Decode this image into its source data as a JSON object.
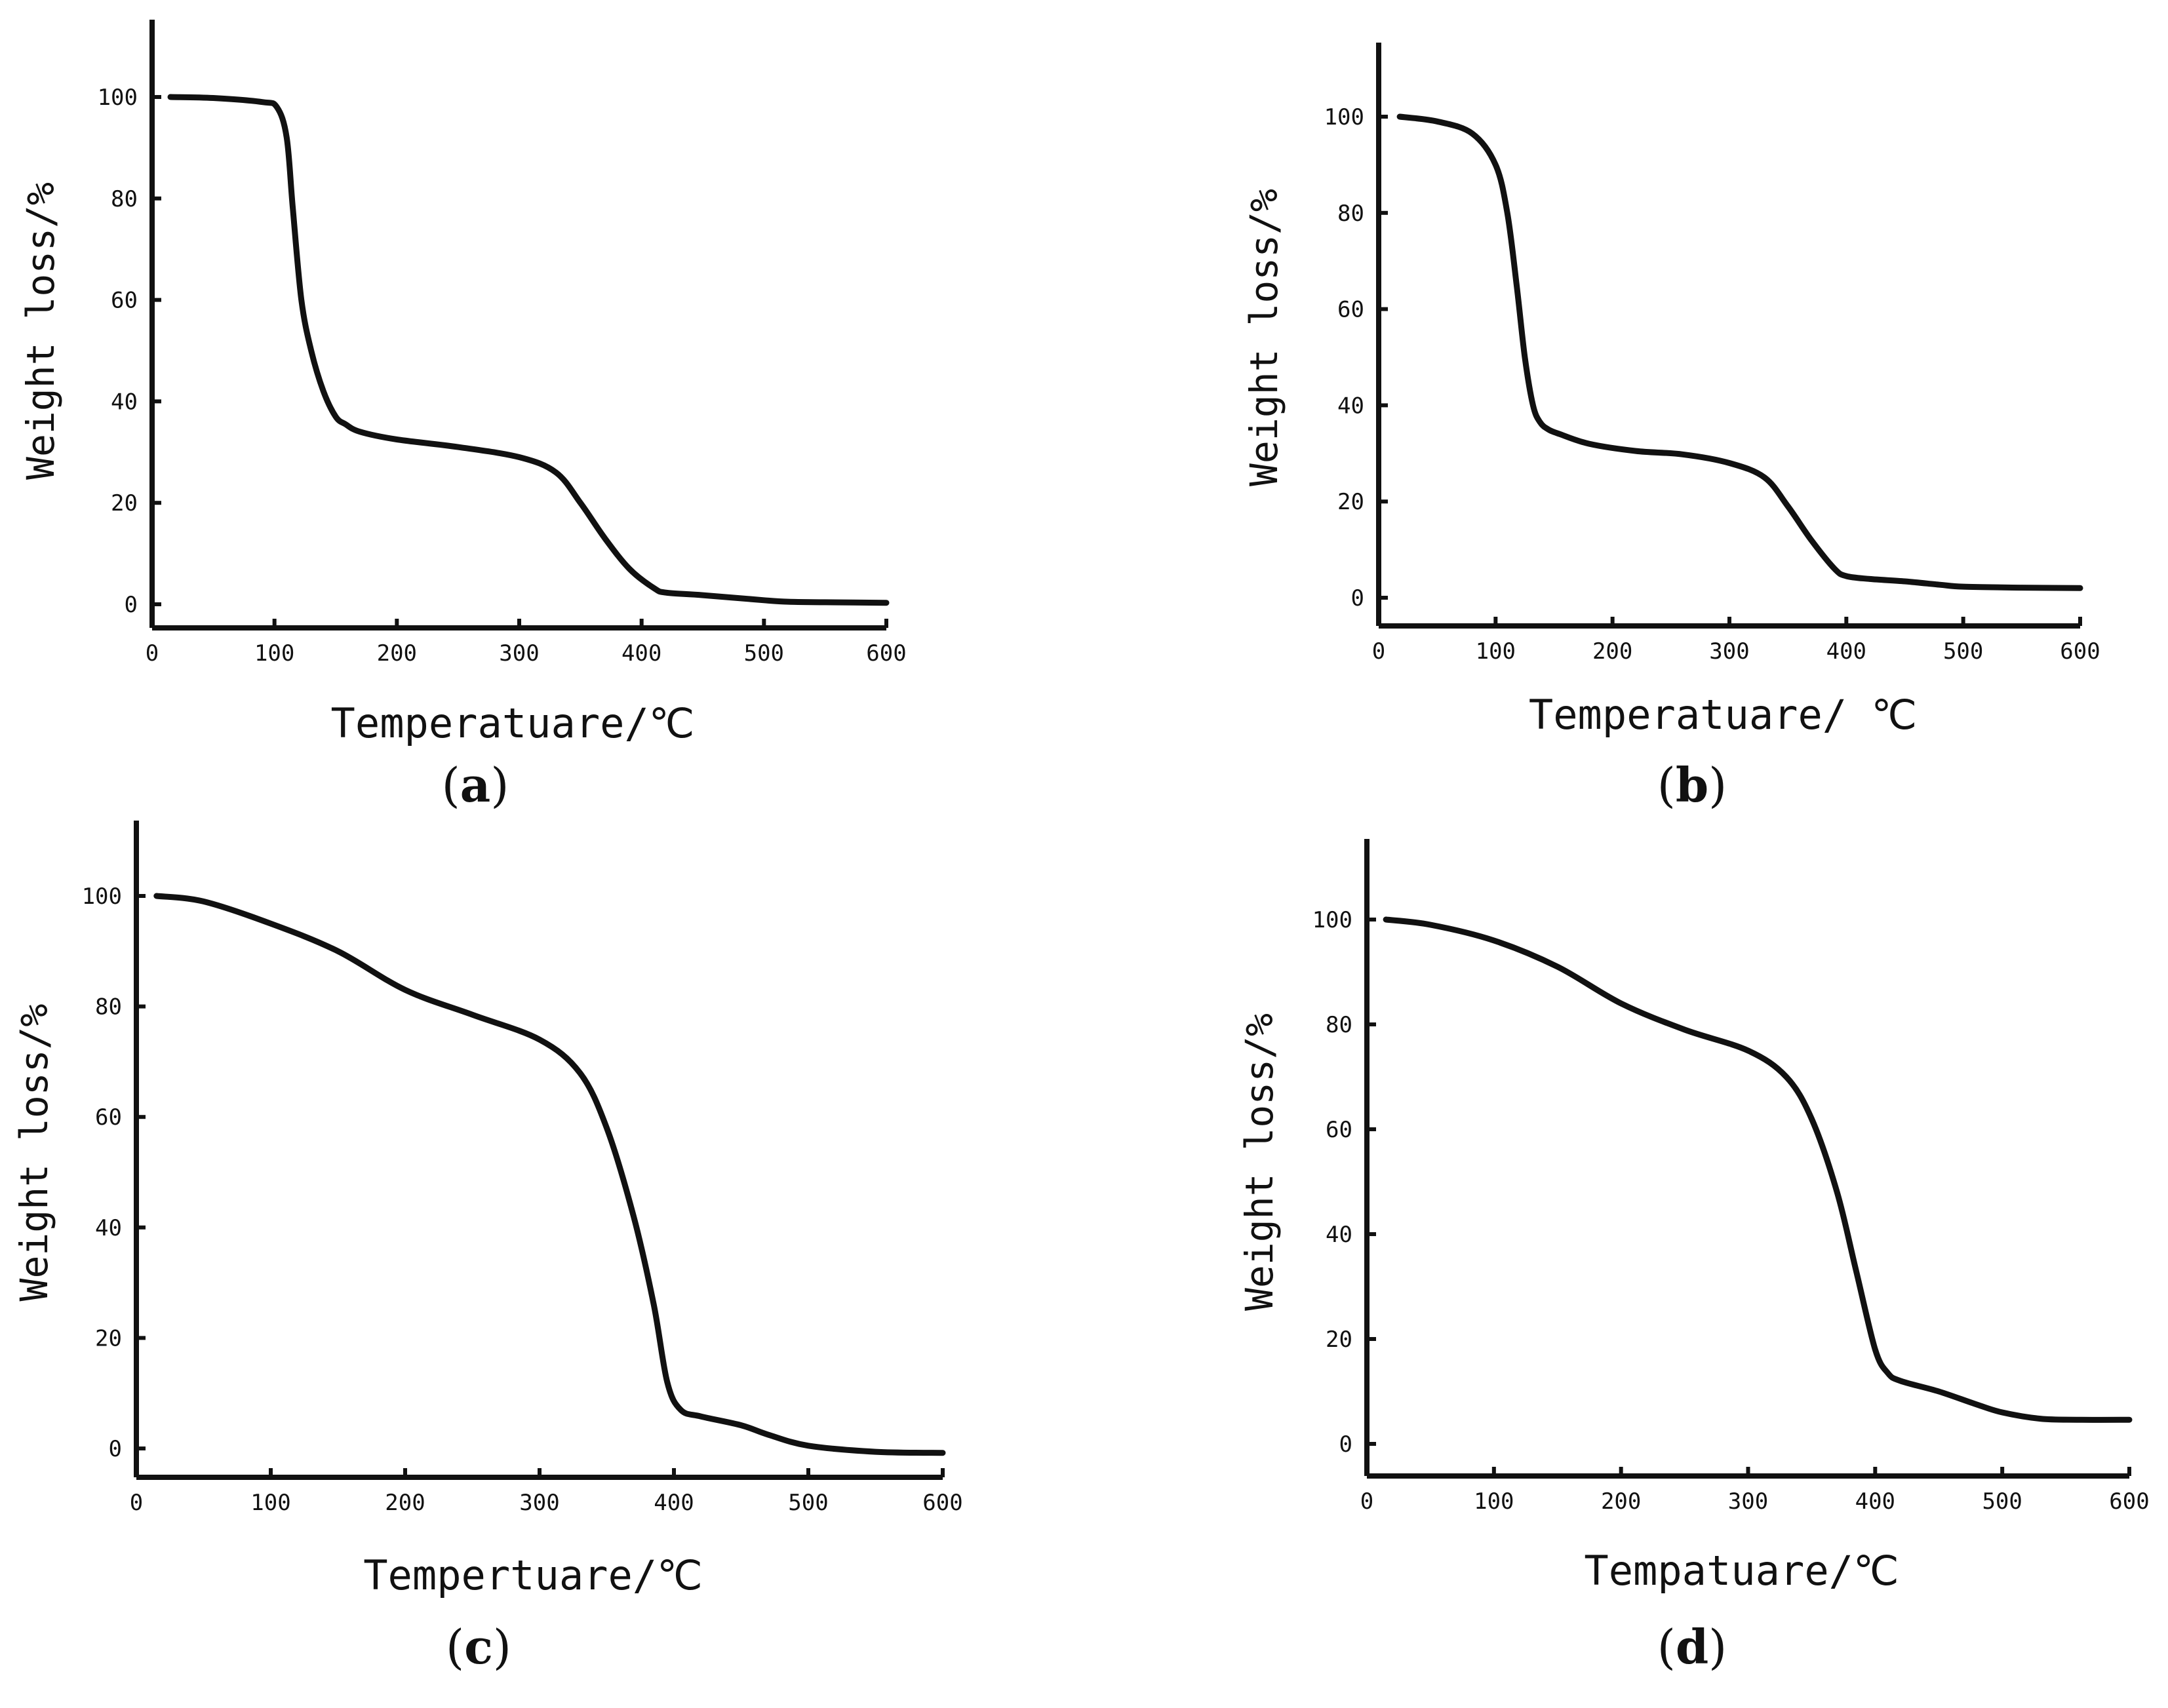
{
  "chart_data": [
    {
      "id": "a",
      "type": "line",
      "panel_label": "a",
      "xlabel": "Temperatuare/℃",
      "ylabel": "Weight loss/%",
      "xlim": [
        0,
        600
      ],
      "ylim": [
        -4,
        115
      ],
      "xticks": [
        0,
        100,
        200,
        300,
        400,
        500,
        600
      ],
      "yticks": [
        0,
        20,
        40,
        60,
        80,
        100
      ],
      "x": [
        15,
        50,
        90,
        102,
        110,
        115,
        122,
        130,
        140,
        150,
        158,
        170,
        200,
        250,
        300,
        330,
        350,
        370,
        390,
        410,
        420,
        450,
        500,
        520,
        550,
        600
      ],
      "y": [
        100,
        99.8,
        99,
        98,
        92,
        78,
        60,
        50,
        42,
        37,
        35.5,
        34,
        32.5,
        31,
        29,
        26,
        20,
        13,
        7,
        3.2,
        2.3,
        1.8,
        0.8,
        0.5,
        0.4,
        0.3
      ]
    },
    {
      "id": "b",
      "type": "line",
      "panel_label": "b",
      "xlabel": "Temperatuare/ ℃",
      "ylabel": "Weight loss/%",
      "xlim": [
        0,
        600
      ],
      "ylim": [
        -5,
        115
      ],
      "xticks": [
        0,
        100,
        200,
        300,
        400,
        500,
        600
      ],
      "yticks": [
        0,
        20,
        40,
        60,
        80,
        100
      ],
      "x": [
        18,
        50,
        80,
        100,
        110,
        118,
        125,
        132,
        138,
        145,
        155,
        180,
        220,
        260,
        300,
        330,
        350,
        370,
        390,
        400,
        420,
        450,
        480,
        500,
        550,
        600
      ],
      "y": [
        100,
        99,
        96.5,
        90,
        80,
        65,
        50,
        40,
        36.5,
        35,
        34,
        32,
        30.5,
        29.8,
        28,
        25,
        19,
        12,
        6,
        4.5,
        3.9,
        3.4,
        2.7,
        2.3,
        2.1,
        2.0
      ]
    },
    {
      "id": "c",
      "type": "line",
      "panel_label": "c",
      "xlabel": "Tempertuare/℃",
      "ylabel": "Weight loss/%",
      "xlim": [
        0,
        600
      ],
      "ylim": [
        -5,
        114
      ],
      "xticks": [
        0,
        100,
        200,
        300,
        400,
        500,
        600
      ],
      "yticks": [
        0,
        20,
        40,
        60,
        80,
        100
      ],
      "x": [
        15,
        50,
        100,
        150,
        200,
        250,
        300,
        330,
        350,
        370,
        385,
        395,
        405,
        420,
        450,
        470,
        500,
        550,
        600
      ],
      "y": [
        100,
        99,
        95,
        90,
        83,
        78.5,
        74,
        68,
        58,
        42,
        26,
        12,
        7,
        5.8,
        4.2,
        2.5,
        0.5,
        -0.6,
        -0.8
      ]
    },
    {
      "id": "d",
      "type": "line",
      "panel_label": "d",
      "xlabel": "Tempatuare/℃",
      "ylabel": "Weight loss/%",
      "xlim": [
        0,
        600
      ],
      "ylim": [
        -5,
        115
      ],
      "xticks": [
        0,
        100,
        200,
        300,
        400,
        500,
        600
      ],
      "yticks": [
        0,
        20,
        40,
        60,
        80,
        100
      ],
      "x": [
        15,
        50,
        100,
        150,
        200,
        250,
        300,
        330,
        350,
        370,
        385,
        400,
        410,
        420,
        450,
        480,
        500,
        530,
        560,
        600
      ],
      "y": [
        100,
        99,
        96,
        91,
        84,
        79,
        75,
        70,
        62,
        48,
        33,
        18,
        13.5,
        12,
        10,
        7.5,
        6,
        4.8,
        4.6,
        4.6
      ]
    }
  ]
}
